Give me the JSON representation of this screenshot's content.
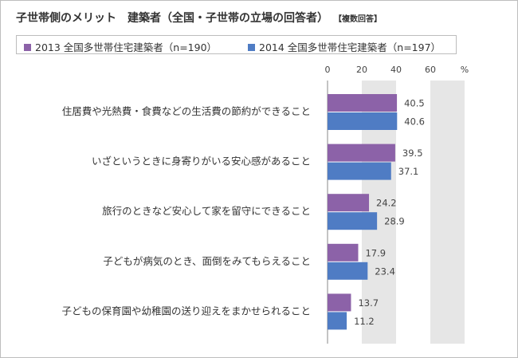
{
  "title": "子世帯側のメリット　建築者（全国・子世帯の立場の回答者）",
  "subtitle": "【複数回答】",
  "colors": {
    "series1": "#8c62a8",
    "series2": "#4f7cc4",
    "band": "#e6e6e6"
  },
  "chart_data": {
    "type": "bar",
    "orientation": "horizontal",
    "categories": [
      "住居費や光熱費・食費などの生活費の節約ができること",
      "いざというときに身寄りがいる安心感があること",
      "旅行のときなど安心して家を留守にできること",
      "子どもが病気のとき、面倒をみてもらえること",
      "子どもの保育園や幼稚園の送り迎えをまかせられること"
    ],
    "series": [
      {
        "name": "2013 全国多世帯住宅建築者（n=190）",
        "values": [
          40.5,
          39.5,
          24.2,
          17.9,
          13.7
        ]
      },
      {
        "name": "2014 全国多世帯住宅建築者（n=197）",
        "values": [
          40.6,
          37.1,
          28.9,
          23.4,
          11.2
        ]
      }
    ],
    "xlim": [
      0,
      80
    ],
    "ticks": [
      "0",
      "20",
      "40",
      "60",
      "%"
    ],
    "grid_bands": [
      [
        20,
        40
      ],
      [
        60,
        80
      ]
    ],
    "legend_position": "top"
  }
}
